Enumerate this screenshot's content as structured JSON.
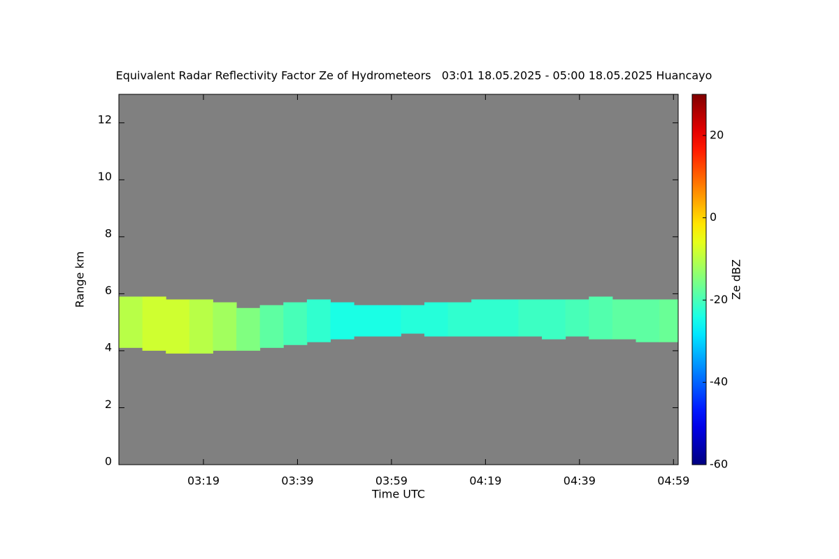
{
  "chart_data": {
    "type": "heatmap",
    "title": "Equivalent Radar Reflectivity Factor Ze of Hydrometeors   03:01 18.05.2025 - 05:00 18.05.2025 Huancayo",
    "x_label": "Time UTC",
    "y_label": "Range km",
    "colorbar_label": "Ze dBZ",
    "background_color": "#808080",
    "xlim": [
      181,
      300
    ],
    "xticks": [
      {
        "value": 199,
        "label": "03:19"
      },
      {
        "value": 219,
        "label": "03:39"
      },
      {
        "value": 239,
        "label": "03:59"
      },
      {
        "value": 259,
        "label": "04:19"
      },
      {
        "value": 279,
        "label": "04:39"
      },
      {
        "value": 299,
        "label": "04:59"
      }
    ],
    "ylim": [
      0,
      13
    ],
    "yticks": [
      0,
      2,
      4,
      6,
      8,
      10,
      12
    ],
    "zlim": [
      -60,
      30
    ],
    "zticks": [
      -60,
      -40,
      -20,
      0,
      20
    ],
    "echo": {
      "x_edges": [
        181,
        186,
        191,
        196,
        201,
        206,
        211,
        216,
        221,
        226,
        231,
        236,
        241,
        246,
        251,
        256,
        261,
        266,
        271,
        276,
        281,
        286,
        291,
        296,
        300
      ],
      "top": [
        5.9,
        5.9,
        5.8,
        5.8,
        5.7,
        5.5,
        5.6,
        5.7,
        5.8,
        5.7,
        5.6,
        5.6,
        5.6,
        5.7,
        5.7,
        5.8,
        5.8,
        5.8,
        5.8,
        5.8,
        5.9,
        5.8,
        5.8,
        5.8
      ],
      "base": [
        4.1,
        4.0,
        3.9,
        3.9,
        4.0,
        4.0,
        4.1,
        4.2,
        4.3,
        4.4,
        4.5,
        4.5,
        4.6,
        4.5,
        4.5,
        4.5,
        4.5,
        4.5,
        4.4,
        4.5,
        4.4,
        4.4,
        4.3,
        4.3
      ],
      "ze": [
        -10,
        -8,
        -8,
        -10,
        -12,
        -15,
        -18,
        -20,
        -22,
        -24,
        -24,
        -24,
        -23,
        -23,
        -22,
        -22,
        -22,
        -21,
        -21,
        -20,
        -19,
        -18,
        -18,
        -17
      ]
    }
  }
}
